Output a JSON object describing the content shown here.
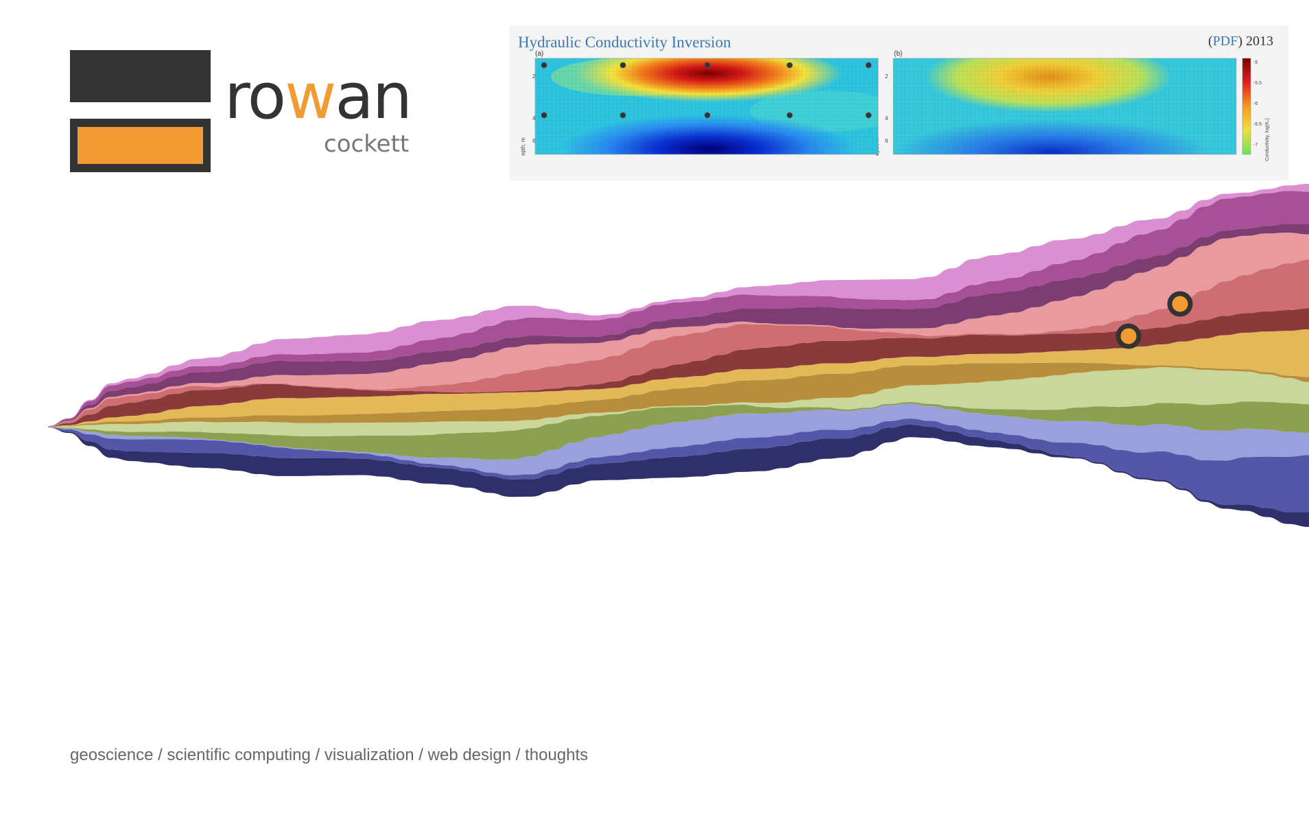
{
  "logo": {
    "name_before": "ro",
    "name_accent": "w",
    "name_after": "an",
    "surname": "cockett",
    "accent_color": "#f39b33",
    "dark_color": "#333333"
  },
  "feature": {
    "title": "Hydraulic Conductivity Inversion",
    "pdf_open": "(",
    "pdf_label": "PDF",
    "pdf_close": ")",
    "year": "2013",
    "panel_a_label": "(a)",
    "panel_b_label": "(b)",
    "y_tick_labels": [
      "2",
      "4",
      "6"
    ],
    "y_axis_label": "epth, m",
    "colorbar_ticks": [
      "-5",
      "-5.5",
      "-6",
      "-6.5",
      "-7"
    ],
    "colorbar_label": "Conductivity, log(Kₛ)"
  },
  "tagline": {
    "items": [
      "geoscience",
      "scientific computing",
      "visualization",
      "web design",
      "thoughts"
    ],
    "separator": "/"
  },
  "stream": {
    "colors": [
      "#2f2f6a",
      "#5456a8",
      "#9aa0dc",
      "#8ba050",
      "#cad79a",
      "#b78f3c",
      "#e3b957",
      "#8a3a3a",
      "#cf6e72",
      "#e89a9e",
      "#7c3e70",
      "#a74f97",
      "#d98fd1"
    ]
  }
}
